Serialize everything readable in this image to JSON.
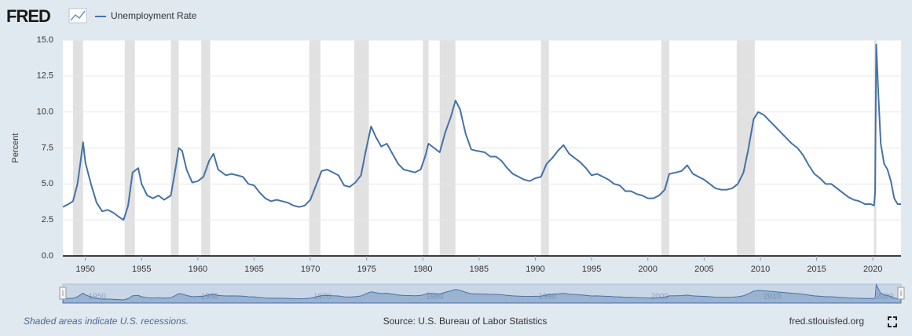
{
  "logo": "FRED",
  "footer": {
    "note": "Shaded areas indicate U.S. recessions.",
    "source": "Source: U.S. Bureau of Labor Statistics",
    "site": "fred.stlouisfed.org"
  },
  "chart_data": {
    "type": "line",
    "y_label": "Percent",
    "xlim": [
      1948,
      2022.5
    ],
    "ylim": [
      0,
      15
    ],
    "xticks": [
      1950,
      1955,
      1960,
      1965,
      1970,
      1975,
      1980,
      1985,
      1990,
      1995,
      2000,
      2005,
      2010,
      2015,
      2020
    ],
    "yticks": [
      {
        "value": 0,
        "label": "0.0"
      },
      {
        "value": 2.5,
        "label": "2.5"
      },
      {
        "value": 5,
        "label": "5.0"
      },
      {
        "value": 7.5,
        "label": "7.5"
      },
      {
        "value": 10,
        "label": "10.0"
      },
      {
        "value": 12.5,
        "label": "12.5"
      },
      {
        "value": 15,
        "label": "15.0"
      }
    ],
    "grid": true,
    "recession_color": "#e1e1e1",
    "recessions": [
      [
        1948.9,
        1949.8
      ],
      [
        1953.5,
        1954.4
      ],
      [
        1957.6,
        1958.3
      ],
      [
        1960.3,
        1961.1
      ],
      [
        1969.9,
        1970.9
      ],
      [
        1973.9,
        1975.2
      ],
      [
        1980.0,
        1980.5
      ],
      [
        1981.5,
        1982.9
      ],
      [
        1990.5,
        1991.2
      ],
      [
        2001.2,
        2001.9
      ],
      [
        2007.9,
        2009.5
      ],
      [
        2020.1,
        2020.3
      ]
    ],
    "navigator_ticks": [
      1950,
      1960,
      1970,
      1980,
      1990,
      2000,
      2010,
      2020
    ],
    "x": [
      1948.0,
      1948.5,
      1948.9,
      1949.3,
      1949.6,
      1949.8,
      1950.0,
      1950.5,
      1951.0,
      1951.5,
      1952.0,
      1952.5,
      1953.0,
      1953.4,
      1953.8,
      1954.2,
      1954.7,
      1955.0,
      1955.5,
      1956.0,
      1956.5,
      1957.0,
      1957.6,
      1958.0,
      1958.3,
      1958.6,
      1959.0,
      1959.5,
      1960.0,
      1960.5,
      1961.0,
      1961.4,
      1961.8,
      1962.5,
      1963.0,
      1963.5,
      1964.0,
      1964.5,
      1965.0,
      1965.5,
      1966.0,
      1966.5,
      1967.0,
      1967.5,
      1968.0,
      1968.5,
      1969.0,
      1969.5,
      1970.0,
      1970.5,
      1971.0,
      1971.5,
      1972.0,
      1972.5,
      1973.0,
      1973.5,
      1974.0,
      1974.5,
      1974.9,
      1975.4,
      1975.8,
      1976.3,
      1976.8,
      1977.3,
      1977.8,
      1978.3,
      1978.8,
      1979.3,
      1979.8,
      1980.2,
      1980.5,
      1981.0,
      1981.5,
      1982.0,
      1982.5,
      1982.9,
      1983.3,
      1983.8,
      1984.3,
      1984.8,
      1985.5,
      1986.0,
      1986.5,
      1987.0,
      1987.5,
      1988.0,
      1988.5,
      1989.0,
      1989.5,
      1990.0,
      1990.5,
      1991.0,
      1991.5,
      1992.0,
      1992.5,
      1993.0,
      1993.5,
      1994.0,
      1994.5,
      1995.0,
      1995.5,
      1996.0,
      1996.5,
      1997.0,
      1997.5,
      1998.0,
      1998.5,
      1999.0,
      1999.5,
      2000.0,
      2000.5,
      2001.0,
      2001.5,
      2001.9,
      2002.5,
      2003.0,
      2003.5,
      2004.0,
      2004.5,
      2005.0,
      2005.5,
      2006.0,
      2006.5,
      2007.0,
      2007.5,
      2008.0,
      2008.5,
      2008.9,
      2009.4,
      2009.8,
      2010.3,
      2010.8,
      2011.3,
      2011.8,
      2012.3,
      2012.8,
      2013.3,
      2013.8,
      2014.3,
      2014.8,
      2015.3,
      2015.8,
      2016.3,
      2016.8,
      2017.3,
      2017.8,
      2018.3,
      2018.8,
      2019.3,
      2019.8,
      2020.1,
      2020.2,
      2020.3,
      2020.5,
      2020.7,
      2021.0,
      2021.3,
      2021.6,
      2021.9,
      2022.2,
      2022.5
    ],
    "series": [
      {
        "name": "Unemployment Rate",
        "color": "#4572a7",
        "values": [
          3.4,
          3.6,
          3.8,
          5.0,
          6.7,
          7.9,
          6.5,
          5.0,
          3.7,
          3.1,
          3.2,
          3.0,
          2.7,
          2.5,
          3.5,
          5.8,
          6.1,
          5.0,
          4.2,
          4.0,
          4.2,
          3.9,
          4.2,
          6.0,
          7.5,
          7.3,
          6.0,
          5.1,
          5.2,
          5.5,
          6.6,
          7.1,
          6.0,
          5.6,
          5.7,
          5.6,
          5.5,
          5.0,
          4.9,
          4.4,
          4.0,
          3.8,
          3.9,
          3.8,
          3.7,
          3.5,
          3.4,
          3.5,
          3.9,
          4.9,
          5.9,
          6.0,
          5.8,
          5.6,
          4.9,
          4.8,
          5.1,
          5.6,
          7.2,
          9.0,
          8.3,
          7.6,
          7.8,
          7.1,
          6.4,
          6.0,
          5.9,
          5.8,
          6.0,
          6.9,
          7.8,
          7.5,
          7.2,
          8.6,
          9.7,
          10.8,
          10.2,
          8.5,
          7.4,
          7.3,
          7.2,
          6.9,
          6.9,
          6.6,
          6.1,
          5.7,
          5.5,
          5.3,
          5.2,
          5.4,
          5.5,
          6.4,
          6.8,
          7.3,
          7.7,
          7.1,
          6.8,
          6.5,
          6.1,
          5.6,
          5.7,
          5.5,
          5.3,
          5.0,
          4.9,
          4.5,
          4.5,
          4.3,
          4.2,
          4.0,
          4.0,
          4.2,
          4.6,
          5.7,
          5.8,
          5.9,
          6.3,
          5.7,
          5.5,
          5.3,
          5.0,
          4.7,
          4.6,
          4.6,
          4.7,
          5.0,
          5.8,
          7.3,
          9.5,
          10.0,
          9.8,
          9.4,
          9.0,
          8.6,
          8.2,
          7.8,
          7.5,
          7.0,
          6.3,
          5.7,
          5.4,
          5.0,
          5.0,
          4.7,
          4.4,
          4.1,
          3.9,
          3.8,
          3.6,
          3.6,
          3.5,
          4.4,
          14.7,
          11.0,
          7.8,
          6.4,
          6.0,
          5.2,
          4.0,
          3.6,
          3.6
        ]
      }
    ]
  }
}
